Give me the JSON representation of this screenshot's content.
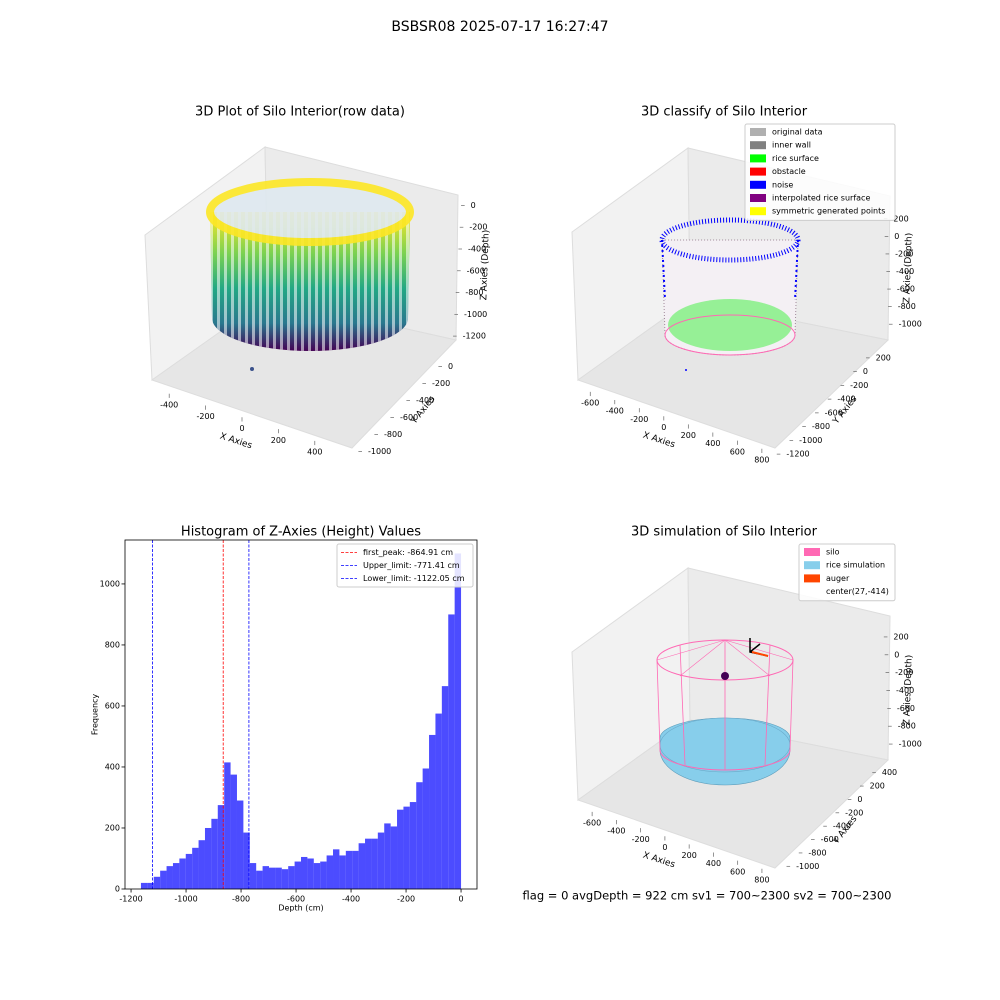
{
  "title": "BSBSR08 2025-07-17 16:27:47",
  "footer": "flag = 0     avgDepth = 922 cm  sv1 = 700~2300  sv2 = 700~2300",
  "chart_data": [
    {
      "type": "scatter3d",
      "title": "3D Plot of Silo Interior(row data)",
      "xlabel": "X Axies",
      "ylabel": "Y Axies",
      "zlabel": "Z Axies (Depth)",
      "xlim": [
        -500,
        500
      ],
      "xticks": [
        -400,
        -200,
        0,
        200,
        400
      ],
      "ylim": [
        -1100,
        100
      ],
      "yticks": [
        0,
        -200,
        -400,
        -600,
        -800,
        -1000
      ],
      "zlim": [
        -1300,
        50
      ],
      "zticks": [
        0,
        -200,
        -400,
        -600,
        -800,
        -1000,
        -1200
      ]
    },
    {
      "type": "scatter3d",
      "title": "3D classify of Silo Interior",
      "xlabel": "X Axies",
      "ylabel": "Y Axies",
      "zlabel": "Z Axies (Depth)",
      "xlim": [
        -700,
        850
      ],
      "xticks": [
        -600,
        -400,
        -200,
        0,
        200,
        400,
        600,
        800
      ],
      "ylim": [
        -1300,
        300
      ],
      "yticks": [
        200,
        0,
        -200,
        -400,
        -600,
        -800,
        -1000,
        -1200
      ],
      "zlim": [
        -1100,
        300
      ],
      "zticks": [
        200,
        0,
        -200,
        -400,
        -600,
        -800,
        -1000
      ],
      "legend_loc": "upper right",
      "legend": [
        {
          "name": "original data",
          "color": "#b0b0b0"
        },
        {
          "name": "inner wall",
          "color": "#808080"
        },
        {
          "name": "rice surface",
          "color": "#00ff00"
        },
        {
          "name": "obstacle",
          "color": "#ff0000"
        },
        {
          "name": "noise",
          "color": "#0000ff"
        },
        {
          "name": "interpolated rice surface",
          "color": "#800080"
        },
        {
          "name": "symmetric generated points",
          "color": "#ffff00"
        }
      ]
    },
    {
      "type": "histogram",
      "title": "Histogram of Z-Axies (Height) Values",
      "xlabel": "Depth (cm)",
      "ylabel": "Frequency",
      "color": "#0000ff",
      "bins": [
        -1164,
        -1140.72,
        -1117.44,
        -1094.16,
        -1070.88,
        -1047.6,
        -1024.32,
        -1001.04,
        -977.76,
        -954.48,
        -931.2,
        -907.92,
        -884.64,
        -861.36,
        -838.08,
        -814.8,
        -791.52,
        -768.24,
        -744.96,
        -721.68,
        -698.4,
        -675.12,
        -651.84,
        -628.56,
        -605.28,
        -582,
        -558.72,
        -535.44,
        -512.16,
        -488.88,
        -465.6,
        -442.32,
        -419.04,
        -395.76,
        -372.48,
        -349.2,
        -325.92,
        -302.64,
        -279.36,
        -256.08,
        -232.8,
        -209.52,
        -186.24,
        -162.96,
        -139.68,
        -116.4,
        -93.12,
        -69.84,
        -46.56,
        -23.28,
        0
      ],
      "counts": [
        20,
        20,
        40,
        60,
        75,
        85,
        100,
        115,
        135,
        160,
        200,
        230,
        275,
        415,
        375,
        290,
        185,
        85,
        60,
        75,
        70,
        70,
        65,
        75,
        90,
        105,
        100,
        85,
        90,
        110,
        130,
        110,
        125,
        125,
        150,
        165,
        165,
        185,
        215,
        205,
        260,
        270,
        285,
        350,
        395,
        505,
        575,
        665,
        900,
        1100
      ],
      "xlim": [
        -1222,
        58
      ],
      "xticks": [
        -1200,
        -1000,
        -800,
        -600,
        -400,
        -200,
        0
      ],
      "ylim": [
        0,
        1144
      ],
      "yticks": [
        0,
        200,
        400,
        600,
        800,
        1000
      ],
      "legend_loc": "upper right",
      "vlines": [
        {
          "label": "first_peak: -864.91 cm",
          "value": -864.91,
          "color": "#ff0000"
        },
        {
          "label": "Upper_limit: -771.41 cm",
          "value": -771.41,
          "color": "#0000ff"
        },
        {
          "label": "Lower_limit: -1122.05 cm",
          "value": -1122.05,
          "color": "#0000ff"
        }
      ]
    },
    {
      "type": "surface3d",
      "title": "3D simulation of Silo Interior",
      "xlabel": "X Axies",
      "ylabel": "Y Axies",
      "zlabel": "Z Axies (Depth)",
      "xlim": [
        -700,
        850
      ],
      "xticks": [
        -600,
        -400,
        -200,
        0,
        200,
        400,
        600,
        800
      ],
      "ylim": [
        -1100,
        500
      ],
      "yticks": [
        400,
        200,
        0,
        -200,
        -400,
        -600,
        -800,
        -1000
      ],
      "zlim": [
        -1100,
        300
      ],
      "zticks": [
        200,
        0,
        -200,
        -400,
        -600,
        -800,
        -1000
      ],
      "legend_loc": "upper right",
      "legend": [
        {
          "name": "silo",
          "color": "#ff69b4"
        },
        {
          "name": "rice simulation",
          "color": "#87ceeb"
        },
        {
          "name": "auger",
          "color": "#ff4500"
        },
        {
          "name": "center(27,-414)"
        }
      ]
    }
  ]
}
